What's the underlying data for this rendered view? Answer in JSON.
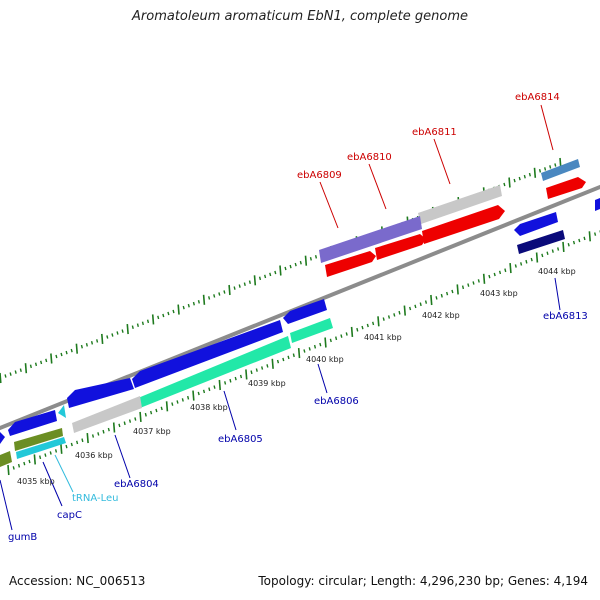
{
  "title": "Aromatoleum aromaticum EbN1, complete genome",
  "footer": {
    "accession": "Accession: NC_006513",
    "summary": "Topology: circular; Length: 4,296,230 bp; Genes: 4,194"
  },
  "colors": {
    "backbone": "#8c8c8c",
    "tick": "#1e7a1e",
    "label_red": "#cc0000",
    "label_blue": "#0000aa",
    "label_cyan": "#33bbdd",
    "feature_red": "#ee0000",
    "feature_blue": "#1111dd",
    "feature_navy": "#0a0a7a",
    "feature_grey": "#c8c8c8",
    "feature_teal": "#22e8a8",
    "feature_purple": "#7a6acc",
    "feature_olive": "#6b8e23",
    "feature_steel": "#4a88c0",
    "feature_cyan": "#22c8d8"
  },
  "axis": {
    "unit": "kbp",
    "scale_labels": [
      "4035 kbp",
      "4036 kbp",
      "4037 kbp",
      "4038 kbp",
      "4039 kbp",
      "4040 kbp",
      "4041 kbp",
      "4042 kbp",
      "4043 kbp",
      "4044 kbp"
    ]
  },
  "genes": [
    {
      "name": "ebA6814",
      "strand": "+",
      "color": "red"
    },
    {
      "name": "ebA6811",
      "strand": "+",
      "color": "red"
    },
    {
      "name": "ebA6810",
      "strand": "+",
      "color": "red"
    },
    {
      "name": "ebA6809",
      "strand": "+",
      "color": "red"
    },
    {
      "name": "ebA6813",
      "strand": "-",
      "color": "blue"
    },
    {
      "name": "ebA6806",
      "strand": "-",
      "color": "blue"
    },
    {
      "name": "ebA6805",
      "strand": "-",
      "color": "blue"
    },
    {
      "name": "ebA6804",
      "strand": "-",
      "color": "blue"
    },
    {
      "name": "tRNA-Leu",
      "strand": "-",
      "color": "cyan"
    },
    {
      "name": "capC",
      "strand": "-",
      "color": "blue"
    },
    {
      "name": "gumB",
      "strand": "-",
      "color": "blue"
    }
  ]
}
